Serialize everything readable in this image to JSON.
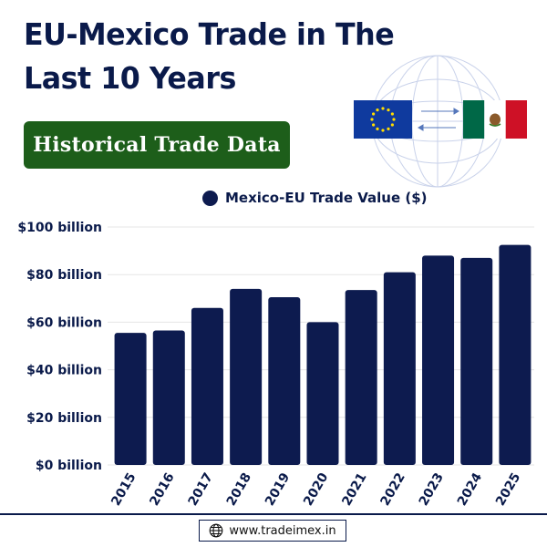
{
  "header": {
    "title": "EU-Mexico Trade in The Last 10 Years",
    "subtitle": "Historical Trade Data"
  },
  "colors": {
    "bar": "#0d1b4f",
    "title": "#0a1a4a",
    "badge": "#1d5e1a",
    "grid": "#e6e6e6"
  },
  "icons": {
    "globe": "globe-icon",
    "eu_flag": "eu-flag-icon",
    "mexico_flag": "mexico-flag-icon",
    "arrows": "trade-arrows-icon",
    "web": "web-globe-icon"
  },
  "chart_data": {
    "type": "bar",
    "title": "",
    "xlabel": "",
    "ylabel": "",
    "categories": [
      "2015",
      "2016",
      "2017",
      "2018",
      "2019",
      "2020",
      "2021",
      "2022",
      "2023",
      "2024",
      "2025"
    ],
    "series": [
      {
        "name": "Mexico-EU Trade Value ($)",
        "values": [
          55.5,
          56.5,
          66,
          74,
          70.5,
          60,
          73.5,
          81,
          88,
          87,
          92.5
        ]
      }
    ],
    "ylim": [
      0,
      100
    ],
    "yticks": [
      0,
      20,
      40,
      60,
      80,
      100
    ],
    "ytick_labels": [
      "$0 billion",
      "$20 billion",
      "$40 billion",
      "$60 billion",
      "$80 billion",
      "$100 billion"
    ],
    "grid": true,
    "legend": "top-center"
  },
  "footer": {
    "url": "www.tradeimex.in"
  }
}
